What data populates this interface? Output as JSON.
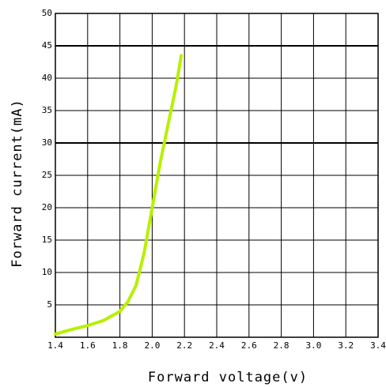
{
  "chart_data": {
    "type": "line",
    "xlabel": "Forward voltage(v)",
    "ylabel": "Forward current(mA)",
    "x": [
      1.4,
      1.5,
      1.6,
      1.7,
      1.8,
      1.85,
      1.9,
      1.95,
      2.0,
      2.05,
      2.1,
      2.15,
      2.18
    ],
    "series": [
      {
        "color": "#b8f000",
        "values": [
          0.5,
          1.2,
          1.8,
          2.6,
          4,
          5.5,
          8,
          13,
          20,
          27,
          33,
          39,
          43.5
        ]
      }
    ],
    "xlim": [
      1.4,
      3.4
    ],
    "xticks": [
      1.4,
      1.6,
      1.8,
      {
        "value": 2,
        "label": "2.0"
      },
      2.2,
      2.4,
      2.6,
      2.8,
      {
        "value": 3,
        "label": "3.0"
      },
      3.2,
      3.4
    ],
    "ylim": [
      0,
      50
    ],
    "yticks": [
      5,
      10,
      15,
      20,
      25,
      30,
      35,
      40,
      45,
      50
    ],
    "grid": true
  }
}
